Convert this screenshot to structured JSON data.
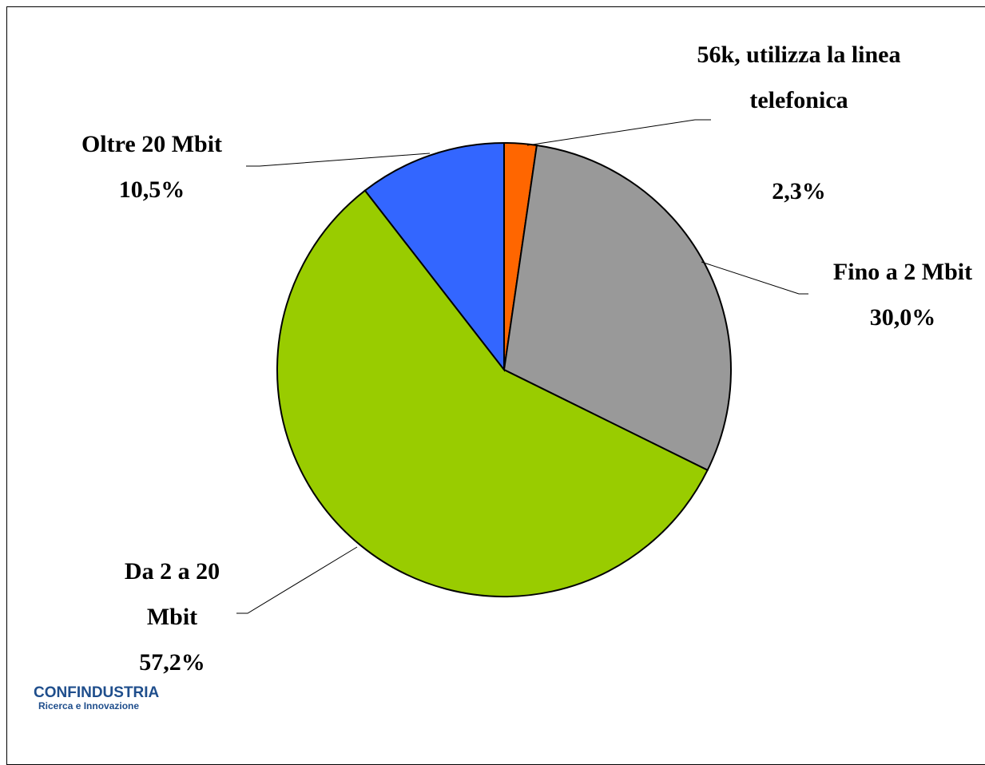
{
  "chart_data": {
    "type": "pie",
    "categories": [
      "56k, utilizza la linea telefonica",
      "Fino a 2 Mbit",
      "Da 2 a 20 Mbit",
      "Oltre 20 Mbit"
    ],
    "values": [
      2.3,
      30.0,
      57.2,
      10.5
    ],
    "value_labels": [
      "2,3%",
      "30,0%",
      "57,2%",
      "10,5%"
    ],
    "colors": [
      "#ff6600",
      "#999999",
      "#99cc00",
      "#3366ff"
    ]
  },
  "logo": {
    "name": "CONFINDUSTRIA",
    "subtitle": "Ricerca e Innovazione"
  }
}
